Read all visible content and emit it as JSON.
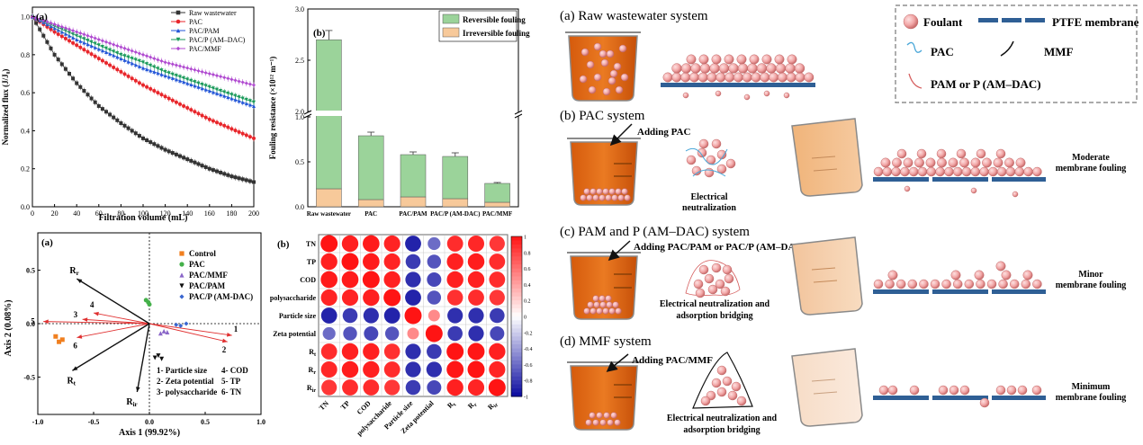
{
  "panel_flux": {
    "label": "(a)",
    "xlabel": "Filtration volume (mL)",
    "ylabel": "Normalized flux (J/J₀)",
    "legend": [
      "Raw wastewater",
      "PAC",
      "PAC/PAM",
      "PAC/P (AM–DAC)",
      "PAC/MMF"
    ],
    "colors": [
      "#333333",
      "#e8262b",
      "#2255d8",
      "#1a9a5a",
      "#b04ad0"
    ],
    "xticks": [
      "0",
      "20",
      "40",
      "60",
      "80",
      "100",
      "120",
      "140",
      "160",
      "180",
      "200"
    ],
    "yticks": [
      "0.0",
      "0.2",
      "0.4",
      "0.6",
      "0.8",
      "1.0"
    ]
  },
  "panel_resistance": {
    "label": "(b)",
    "ylabel": "Fouling resistance (×10¹² m⁻¹)",
    "legend": [
      "Reversible fouling",
      "Irreversible fouling"
    ],
    "categories": [
      "Raw wastewater",
      "PAC",
      "PAC/PAM",
      "PAC/P (AM-DAC)",
      "PAC/MMF"
    ],
    "yticks": [
      "0.0",
      "0.5",
      "1.0",
      "2.0",
      "2.5",
      "3.0"
    ]
  },
  "panel_rda": {
    "label": "(a)",
    "xlabel": "Axis 1 (99.92%)",
    "ylabel": "Axis 2 (0.08%)",
    "legend": [
      "Control",
      "PAC",
      "PAC/MMF",
      "PAC/PAM",
      "PAC/P (AM-DAC)"
    ],
    "legend_colors": [
      "#f07f1f",
      "#44b04a",
      "#8a66c8",
      "#111111",
      "#3a66d0"
    ],
    "xticks": [
      "-1.0",
      "-0.5",
      "0.0",
      "0.5",
      "1.0"
    ],
    "yticks": [
      "0.5",
      "0.0",
      "-0.5"
    ],
    "vector_labels": [
      "1",
      "2",
      "3",
      "4",
      "5",
      "6"
    ],
    "response_labels": [
      "R",
      "R",
      "R"
    ],
    "response_subs": [
      "r",
      "t",
      "ir"
    ],
    "key_left": [
      "1- Particle size",
      "2- Zeta potential",
      "3- polysaccharide"
    ],
    "key_right": [
      "4- COD",
      "5- TP",
      "6- TN"
    ]
  },
  "panel_corr": {
    "label": "(b)",
    "rows": [
      "TN",
      "TP",
      "COD",
      "polysaccharide",
      "Particle size",
      "Zeta potential",
      "R",
      "R",
      "R"
    ],
    "row_subs": [
      "",
      "",
      "",
      "",
      "",
      "",
      "t",
      "r",
      "ir"
    ],
    "scale_ticks": [
      "1",
      "0.8",
      "0.6",
      "0.4",
      "0.2",
      "0",
      "-0.2",
      "-0.4",
      "-0.6",
      "-0.8",
      "-1"
    ]
  },
  "schematic": {
    "title_a": "(a) Raw wastewater system",
    "title_b": "(b) PAC system",
    "title_c": "(c) PAM and P (AM–DAC) system",
    "title_d": "(d) MMF system",
    "legend": {
      "foulant": "Foulant",
      "membrane": "PTFE membrane",
      "pac": "PAC",
      "mmf": "MMF",
      "pam": "PAM or P (AM–DAC)"
    },
    "add_b": "Adding PAC",
    "add_c": "Adding PAC/PAM or PAC/P (AM–DAC)",
    "add_d": "Adding PAC/MMF",
    "mech_b": [
      "Electrical",
      "neutralization"
    ],
    "mech_c": [
      "Electrical  neutralization and",
      "adsorption bridging"
    ],
    "mech_d": [
      "Electrical  neutralization and",
      "adsorption bridging"
    ],
    "result_b": [
      "Moderate",
      "membrane fouling"
    ],
    "result_c": [
      "Minor",
      "membrane fouling"
    ],
    "result_d": [
      "Minimum",
      "membrane fouling"
    ]
  },
  "chart_data": [
    {
      "type": "line",
      "title": "",
      "xlabel": "Filtration volume (mL)",
      "ylabel": "Normalized flux (J/J₀)",
      "xlim": [
        0,
        200
      ],
      "ylim": [
        0,
        1.05
      ],
      "x": [
        0,
        20,
        40,
        60,
        80,
        100,
        120,
        140,
        160,
        180,
        200
      ],
      "series": [
        {
          "name": "Raw wastewater",
          "values": [
            1.0,
            0.8,
            0.65,
            0.53,
            0.44,
            0.36,
            0.3,
            0.25,
            0.2,
            0.16,
            0.13
          ]
        },
        {
          "name": "PAC",
          "values": [
            1.0,
            0.92,
            0.85,
            0.78,
            0.71,
            0.64,
            0.58,
            0.52,
            0.46,
            0.41,
            0.36
          ]
        },
        {
          "name": "PAC/PAM",
          "values": [
            1.0,
            0.94,
            0.88,
            0.83,
            0.78,
            0.73,
            0.69,
            0.65,
            0.61,
            0.57,
            0.53
          ]
        },
        {
          "name": "PAC/P (AM–DAC)",
          "values": [
            1.0,
            0.95,
            0.9,
            0.85,
            0.8,
            0.76,
            0.71,
            0.67,
            0.63,
            0.59,
            0.55
          ]
        },
        {
          "name": "PAC/MMF",
          "values": [
            1.0,
            0.96,
            0.92,
            0.88,
            0.84,
            0.8,
            0.76,
            0.73,
            0.7,
            0.67,
            0.64
          ]
        }
      ]
    },
    {
      "type": "bar",
      "title": "",
      "ylabel": "Fouling resistance (×10¹² m⁻¹)",
      "categories": [
        "Raw wastewater",
        "PAC",
        "PAC/PAM",
        "PAC/P (AM-DAC)",
        "PAC/MMF"
      ],
      "stacked": true,
      "ylim": [
        0,
        3.0
      ],
      "broken_axis": [
        1.0,
        2.0
      ],
      "series": [
        {
          "name": "Irreversible fouling",
          "values": [
            0.2,
            0.08,
            0.11,
            0.09,
            0.05
          ]
        },
        {
          "name": "Reversible fouling",
          "values": [
            2.5,
            0.71,
            0.47,
            0.47,
            0.21
          ]
        }
      ],
      "error_top": [
        0.09,
        0.04,
        0.03,
        0.04,
        0.01
      ]
    },
    {
      "type": "scatter",
      "title": "",
      "xlabel": "Axis 1 (99.92%)",
      "ylabel": "Axis 2 (0.08%)",
      "xlim": [
        -1.0,
        1.0
      ],
      "ylim": [
        -0.85,
        0.85
      ],
      "series": [
        {
          "name": "Control",
          "points": [
            [
              -0.84,
              -0.12
            ],
            [
              -0.81,
              -0.17
            ],
            [
              -0.78,
              -0.15
            ]
          ]
        },
        {
          "name": "PAC",
          "points": [
            [
              -0.03,
              0.22
            ],
            [
              -0.01,
              0.2
            ],
            [
              0.0,
              0.18
            ]
          ]
        },
        {
          "name": "PAC/MMF",
          "points": [
            [
              0.1,
              -0.09
            ],
            [
              0.13,
              -0.07
            ],
            [
              0.16,
              -0.08
            ]
          ]
        },
        {
          "name": "PAC/PAM",
          "points": [
            [
              0.05,
              -0.32
            ],
            [
              0.08,
              -0.3
            ],
            [
              0.11,
              -0.33
            ]
          ]
        },
        {
          "name": "PAC/P (AM-DAC)",
          "points": [
            [
              0.24,
              -0.01
            ],
            [
              0.28,
              -0.02
            ],
            [
              0.33,
              0.0
            ]
          ]
        }
      ],
      "vectors": [
        {
          "label": "1",
          "x": 0.74,
          "y": -0.11
        },
        {
          "label": "2",
          "x": 0.7,
          "y": -0.17
        },
        {
          "label": "3",
          "x": -0.6,
          "y": 0.04
        },
        {
          "label": "4",
          "x": -0.5,
          "y": 0.1
        },
        {
          "label": "5",
          "x": -0.95,
          "y": 0.02
        },
        {
          "label": "6",
          "x": -0.65,
          "y": -0.13
        },
        {
          "label": "Rr",
          "x": -0.65,
          "y": 0.42
        },
        {
          "label": "Rt",
          "x": -0.69,
          "y": -0.44
        },
        {
          "label": "Rir",
          "x": -0.11,
          "y": -0.64
        }
      ]
    },
    {
      "type": "heatmap",
      "title": "",
      "x": [
        "TN",
        "TP",
        "COD",
        "polysaccharide",
        "Particle size",
        "Zeta potential",
        "Rt",
        "Rr",
        "Rir"
      ],
      "y": [
        "TN",
        "TP",
        "COD",
        "polysaccharide",
        "Particle size",
        "Zeta potential",
        "Rt",
        "Rr",
        "Rir"
      ],
      "zlim": [
        -1,
        1
      ],
      "values": [
        [
          1,
          0.95,
          0.97,
          0.93,
          -0.9,
          -0.6,
          0.9,
          0.92,
          0.85
        ],
        [
          0.95,
          1,
          0.97,
          0.93,
          -0.8,
          -0.7,
          0.95,
          0.96,
          0.9
        ],
        [
          0.97,
          0.97,
          1,
          0.95,
          -0.85,
          -0.75,
          0.95,
          0.95,
          0.9
        ],
        [
          0.93,
          0.93,
          0.95,
          1,
          -0.9,
          -0.7,
          0.88,
          0.9,
          0.85
        ],
        [
          -0.9,
          -0.8,
          -0.85,
          -0.9,
          1,
          0.5,
          -0.85,
          -0.85,
          -0.8
        ],
        [
          -0.6,
          -0.7,
          -0.75,
          -0.7,
          0.5,
          1,
          -0.8,
          -0.85,
          -0.75
        ],
        [
          0.9,
          0.95,
          0.95,
          0.88,
          -0.85,
          -0.8,
          1,
          0.99,
          0.95
        ],
        [
          0.92,
          0.96,
          0.95,
          0.9,
          -0.85,
          -0.85,
          0.99,
          1,
          0.93
        ],
        [
          0.85,
          0.9,
          0.9,
          0.85,
          -0.8,
          -0.75,
          0.95,
          0.93,
          1
        ]
      ]
    }
  ]
}
